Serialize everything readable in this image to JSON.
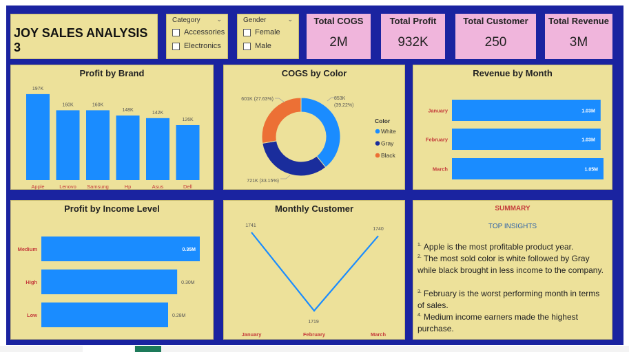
{
  "header": {
    "title": "JOY SALES ANALYSIS 3"
  },
  "slicers": [
    {
      "title": "Category",
      "options": [
        "Accessories",
        "Electronics"
      ]
    },
    {
      "title": "Gender",
      "options": [
        "Female",
        "Male"
      ]
    }
  ],
  "kpis": [
    {
      "label": "Total COGS",
      "value": "2M"
    },
    {
      "label": "Total Profit",
      "value": "932K"
    },
    {
      "label": "Total Customer",
      "value": "250"
    },
    {
      "label": "Total Revenue",
      "value": "3M"
    }
  ],
  "colors": {
    "canvas": "#1a23a0",
    "card": "#ede19a",
    "kpi": "#f0b5dc",
    "bar": "#1a8cff",
    "accent_red": "#c43b3b"
  },
  "chart_data": [
    {
      "id": "profit-by-brand",
      "type": "bar",
      "title": "Profit by Brand",
      "categories": [
        "Apple",
        "Lenovo",
        "Samsung",
        "Hp",
        "Asus",
        "Dell"
      ],
      "values": [
        197,
        160,
        160,
        148,
        142,
        126
      ],
      "data_labels": [
        "197K",
        "160K",
        "160K",
        "148K",
        "142K",
        "126K"
      ],
      "ylim": [
        0,
        200
      ]
    },
    {
      "id": "cogs-by-color",
      "type": "pie",
      "title": "COGS by Color",
      "legend_title": "Color",
      "legend_position": "right",
      "slices": [
        {
          "name": "White",
          "value": 853,
          "label": "853K",
          "pct": "(39.22%)",
          "color": "#1a8cff"
        },
        {
          "name": "Gray",
          "value": 721,
          "label": "721K (33.15%)",
          "pct": "",
          "color": "#1a2d9c"
        },
        {
          "name": "Black",
          "value": 601,
          "label": "601K (27.63%)",
          "pct": "",
          "color": "#ec7035"
        }
      ]
    },
    {
      "id": "revenue-by-month",
      "type": "bar",
      "orientation": "horizontal",
      "title": "Revenue by Month",
      "categories": [
        "January",
        "February",
        "March"
      ],
      "values": [
        1.03,
        1.03,
        1.05
      ],
      "data_labels": [
        "1.03M",
        "1.03M",
        "1.05M"
      ],
      "xlim": [
        0,
        1.05
      ]
    },
    {
      "id": "profit-by-income",
      "type": "bar",
      "orientation": "horizontal",
      "title": "Profit by Income Level",
      "categories": [
        "Medium",
        "High",
        "Low"
      ],
      "values": [
        0.35,
        0.3,
        0.28
      ],
      "data_labels": [
        "0.35M",
        "0.30M",
        "0.28M"
      ],
      "xlim": [
        0,
        0.35
      ]
    },
    {
      "id": "monthly-customer",
      "type": "line",
      "title": "Monthly Customer",
      "categories": [
        "January",
        "February",
        "March"
      ],
      "values": [
        1741,
        1719,
        1740
      ],
      "data_labels": [
        "1741",
        "1719",
        "1740"
      ],
      "ylim": [
        1719,
        1741
      ]
    }
  ],
  "summary": {
    "title": "SUMMARY",
    "subtitle": "TOP INSIGHTS",
    "items": [
      {
        "num": "1.",
        "text": "Apple  is the most profitable product year."
      },
      {
        "num": "2.",
        "text": "The most sold color is white followed by Gray while black brought in less income to the company."
      },
      {
        "num": "3.",
        "text": "February is the worst performing month in terms of sales."
      },
      {
        "num": "4.",
        "text": "Medium income earners made the highest purchase."
      }
    ]
  }
}
